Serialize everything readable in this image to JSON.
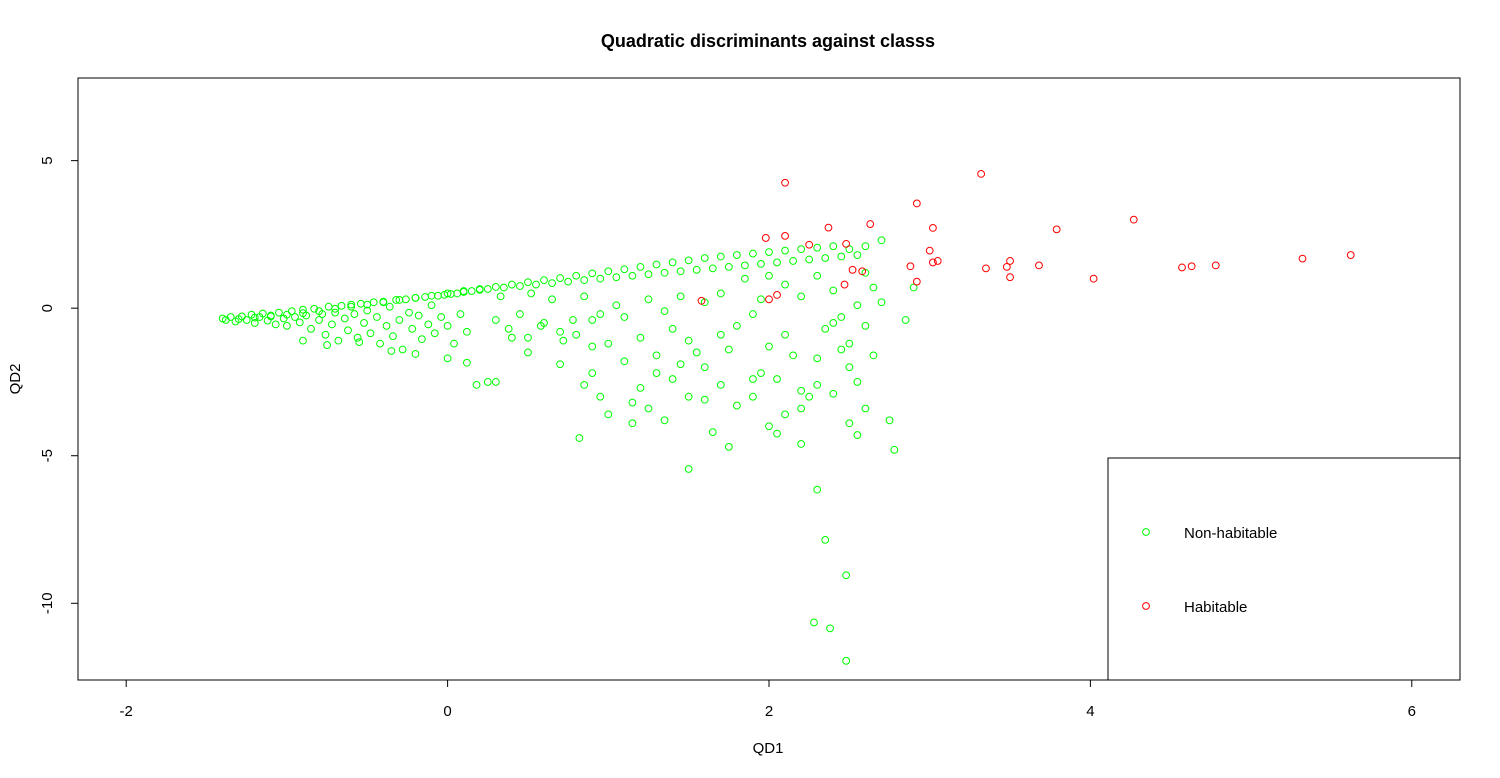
{
  "chart_data": {
    "type": "scatter",
    "title": "Quadratic discriminants against classs",
    "xlabel": "QD1",
    "ylabel": "QD2",
    "xlim": [
      -2.3,
      6.3
    ],
    "ylim": [
      -12.6,
      7.8
    ],
    "xticks": [
      -2,
      0,
      2,
      4,
      6
    ],
    "yticks": [
      -10,
      -5,
      0,
      5
    ],
    "grid": false,
    "legend_position": "bottom-right",
    "series": [
      {
        "name": "Non-habitable",
        "color": "#00ff00",
        "marker": "open-circle",
        "points": [
          [
            -1.4,
            -0.35
          ],
          [
            -1.35,
            -0.3
          ],
          [
            -1.32,
            -0.45
          ],
          [
            -1.28,
            -0.28
          ],
          [
            -1.25,
            -0.4
          ],
          [
            -1.22,
            -0.22
          ],
          [
            -1.2,
            -0.5
          ],
          [
            -1.17,
            -0.3
          ],
          [
            -1.15,
            -0.18
          ],
          [
            -1.12,
            -0.42
          ],
          [
            -1.1,
            -0.25
          ],
          [
            -1.07,
            -0.55
          ],
          [
            -1.05,
            -0.15
          ],
          [
            -1.02,
            -0.35
          ],
          [
            -1.0,
            -0.6
          ],
          [
            -0.97,
            -0.1
          ],
          [
            -0.95,
            -0.3
          ],
          [
            -0.92,
            -0.48
          ],
          [
            -0.9,
            -0.05
          ],
          [
            -0.88,
            -0.25
          ],
          [
            -0.85,
            -0.7
          ],
          [
            -0.83,
            -0.02
          ],
          [
            -0.8,
            -0.4
          ],
          [
            -0.78,
            -0.2
          ],
          [
            -0.76,
            -0.9
          ],
          [
            -0.74,
            0.05
          ],
          [
            -0.72,
            -0.55
          ],
          [
            -0.7,
            -0.15
          ],
          [
            -0.68,
            -1.1
          ],
          [
            -0.66,
            0.08
          ],
          [
            -0.64,
            -0.35
          ],
          [
            -0.62,
            -0.75
          ],
          [
            -0.6,
            0.12
          ],
          [
            -0.58,
            -0.2
          ],
          [
            -0.56,
            -1.0
          ],
          [
            -0.54,
            0.15
          ],
          [
            -0.52,
            -0.5
          ],
          [
            -0.5,
            -0.08
          ],
          [
            -0.48,
            -0.85
          ],
          [
            -0.46,
            0.2
          ],
          [
            -0.44,
            -0.3
          ],
          [
            -0.42,
            -1.2
          ],
          [
            -0.4,
            0.22
          ],
          [
            -0.38,
            -0.6
          ],
          [
            -0.36,
            0.05
          ],
          [
            -0.34,
            -0.95
          ],
          [
            -0.32,
            0.28
          ],
          [
            -0.3,
            -0.4
          ],
          [
            -0.28,
            -1.4
          ],
          [
            -0.26,
            0.3
          ],
          [
            -0.24,
            -0.15
          ],
          [
            -0.22,
            -0.7
          ],
          [
            -0.2,
            0.35
          ],
          [
            -0.18,
            -0.25
          ],
          [
            -0.16,
            -1.05
          ],
          [
            -0.14,
            0.38
          ],
          [
            -0.12,
            -0.55
          ],
          [
            -0.1,
            0.1
          ],
          [
            -0.08,
            -0.85
          ],
          [
            -0.06,
            0.42
          ],
          [
            -0.04,
            -0.3
          ],
          [
            -0.02,
            0.45
          ],
          [
            0.0,
            -0.6
          ],
          [
            0.02,
            0.48
          ],
          [
            0.04,
            -1.2
          ],
          [
            0.06,
            0.5
          ],
          [
            0.08,
            -0.2
          ],
          [
            0.1,
            0.55
          ],
          [
            0.12,
            -0.8
          ],
          [
            0.15,
            0.58
          ],
          [
            -0.9,
            -1.1
          ],
          [
            -0.75,
            -1.25
          ],
          [
            -0.55,
            -1.15
          ],
          [
            -0.35,
            -1.45
          ],
          [
            -0.2,
            -1.55
          ],
          [
            0.0,
            -1.7
          ],
          [
            0.12,
            -1.85
          ],
          [
            0.18,
            -2.6
          ],
          [
            0.25,
            -2.5
          ],
          [
            0.3,
            -2.5
          ],
          [
            0.2,
            0.62
          ],
          [
            0.25,
            0.65
          ],
          [
            0.3,
            -0.4
          ],
          [
            0.35,
            0.7
          ],
          [
            0.4,
            -1.0
          ],
          [
            0.45,
            0.75
          ],
          [
            0.5,
            -1.5
          ],
          [
            0.55,
            0.8
          ],
          [
            0.6,
            -0.5
          ],
          [
            0.65,
            0.85
          ],
          [
            0.7,
            -1.9
          ],
          [
            0.75,
            0.9
          ],
          [
            0.8,
            -0.9
          ],
          [
            0.85,
            0.95
          ],
          [
            0.9,
            -2.2
          ],
          [
            0.95,
            1.0
          ],
          [
            1.0,
            -1.2
          ],
          [
            1.05,
            1.05
          ],
          [
            1.1,
            -0.3
          ],
          [
            1.15,
            1.1
          ],
          [
            1.2,
            -2.7
          ],
          [
            1.25,
            1.15
          ],
          [
            1.3,
            -1.6
          ],
          [
            1.35,
            1.2
          ],
          [
            1.4,
            -0.7
          ],
          [
            1.45,
            1.25
          ],
          [
            1.5,
            -3.0
          ],
          [
            1.55,
            1.3
          ],
          [
            1.6,
            -2.0
          ],
          [
            1.65,
            1.35
          ],
          [
            1.7,
            -0.9
          ],
          [
            1.75,
            1.4
          ],
          [
            1.8,
            -3.3
          ],
          [
            1.85,
            1.45
          ],
          [
            1.9,
            -2.4
          ],
          [
            1.95,
            1.5
          ],
          [
            2.0,
            -1.3
          ],
          [
            2.05,
            1.55
          ],
          [
            2.1,
            -3.6
          ],
          [
            2.15,
            1.6
          ],
          [
            2.2,
            -2.8
          ],
          [
            2.25,
            1.65
          ],
          [
            2.3,
            -1.7
          ],
          [
            2.35,
            1.7
          ],
          [
            2.4,
            -0.5
          ],
          [
            2.45,
            1.75
          ],
          [
            2.5,
            -2.0
          ],
          [
            2.55,
            1.8
          ],
          [
            0.82,
            -4.4
          ],
          [
            1.5,
            -5.45
          ],
          [
            1.75,
            -4.7
          ],
          [
            2.05,
            -4.25
          ],
          [
            2.2,
            -4.6
          ],
          [
            2.55,
            -4.3
          ],
          [
            2.78,
            -4.8
          ],
          [
            2.3,
            -6.15
          ],
          [
            2.35,
            -7.85
          ],
          [
            2.48,
            -9.05
          ],
          [
            2.28,
            -10.65
          ],
          [
            2.38,
            -10.85
          ],
          [
            2.48,
            -11.95
          ],
          [
            0.5,
            -1.0
          ],
          [
            0.7,
            -0.8
          ],
          [
            0.9,
            -0.4
          ],
          [
            1.1,
            -1.8
          ],
          [
            1.3,
            -2.2
          ],
          [
            1.5,
            -1.1
          ],
          [
            1.7,
            -2.6
          ],
          [
            1.9,
            -0.2
          ],
          [
            2.1,
            -0.9
          ],
          [
            2.3,
            -2.6
          ],
          [
            2.5,
            -1.2
          ],
          [
            2.6,
            -0.6
          ],
          [
            2.7,
            0.2
          ],
          [
            2.65,
            -1.6
          ],
          [
            2.6,
            1.2
          ],
          [
            2.55,
            0.1
          ],
          [
            2.45,
            -0.3
          ],
          [
            2.4,
            0.6
          ],
          [
            2.3,
            1.1
          ],
          [
            2.2,
            0.4
          ],
          [
            2.1,
            0.8
          ],
          [
            2.0,
            1.1
          ],
          [
            1.95,
            0.3
          ],
          [
            1.85,
            1.0
          ],
          [
            1.8,
            -0.6
          ],
          [
            1.7,
            0.5
          ],
          [
            1.6,
            0.2
          ],
          [
            1.55,
            -1.5
          ],
          [
            1.45,
            0.4
          ],
          [
            1.4,
            -2.4
          ],
          [
            1.35,
            -0.1
          ],
          [
            1.25,
            0.3
          ],
          [
            1.2,
            -1.0
          ],
          [
            1.15,
            -3.2
          ],
          [
            1.05,
            0.1
          ],
          [
            1.0,
            -3.6
          ],
          [
            0.95,
            -0.2
          ],
          [
            0.9,
            -1.3
          ],
          [
            0.85,
            0.4
          ],
          [
            0.78,
            -0.4
          ],
          [
            0.72,
            -1.1
          ],
          [
            0.65,
            0.3
          ],
          [
            0.58,
            -0.6
          ],
          [
            0.52,
            0.5
          ],
          [
            0.45,
            -0.2
          ],
          [
            0.38,
            -0.7
          ],
          [
            0.33,
            0.4
          ],
          [
            2.9,
            0.7
          ],
          [
            2.85,
            -0.4
          ],
          [
            2.75,
            -3.8
          ],
          [
            2.6,
            -3.4
          ],
          [
            2.5,
            -3.9
          ],
          [
            2.4,
            -2.9
          ],
          [
            2.2,
            -3.4
          ],
          [
            2.0,
            -4.0
          ],
          [
            1.9,
            -3.0
          ],
          [
            1.65,
            -4.2
          ],
          [
            1.35,
            -3.8
          ],
          [
            1.25,
            -3.4
          ],
          [
            1.15,
            -3.9
          ],
          [
            0.95,
            -3.0
          ],
          [
            0.85,
            -2.6
          ],
          [
            1.45,
            -1.9
          ],
          [
            1.6,
            -3.1
          ],
          [
            1.75,
            -1.4
          ],
          [
            1.95,
            -2.2
          ],
          [
            2.15,
            -1.6
          ],
          [
            2.35,
            -0.7
          ],
          [
            2.45,
            -1.4
          ],
          [
            2.55,
            -2.5
          ],
          [
            2.65,
            0.7
          ],
          [
            2.7,
            2.3
          ],
          [
            2.6,
            2.1
          ],
          [
            2.5,
            2.0
          ],
          [
            2.4,
            2.1
          ],
          [
            2.3,
            2.05
          ],
          [
            2.2,
            2.0
          ],
          [
            2.1,
            1.95
          ],
          [
            2.0,
            1.9
          ],
          [
            1.9,
            1.85
          ],
          [
            1.8,
            1.8
          ],
          [
            1.7,
            1.75
          ],
          [
            1.6,
            1.7
          ],
          [
            1.5,
            1.62
          ],
          [
            1.4,
            1.55
          ],
          [
            1.3,
            1.48
          ],
          [
            1.2,
            1.4
          ],
          [
            1.1,
            1.32
          ],
          [
            1.0,
            1.25
          ],
          [
            0.9,
            1.18
          ],
          [
            0.8,
            1.1
          ],
          [
            0.7,
            1.02
          ],
          [
            0.6,
            0.95
          ],
          [
            0.5,
            0.88
          ],
          [
            0.4,
            0.8
          ],
          [
            0.3,
            0.72
          ],
          [
            0.2,
            0.65
          ],
          [
            0.1,
            0.58
          ],
          [
            0.0,
            0.5
          ],
          [
            -0.1,
            0.42
          ],
          [
            -0.2,
            0.35
          ],
          [
            -0.3,
            0.28
          ],
          [
            -0.4,
            0.2
          ],
          [
            -0.5,
            0.12
          ],
          [
            -0.6,
            0.05
          ],
          [
            -0.7,
            -0.02
          ],
          [
            -0.8,
            -0.1
          ],
          [
            -0.9,
            -0.17
          ],
          [
            -1.0,
            -0.22
          ],
          [
            -1.1,
            -0.28
          ],
          [
            -1.2,
            -0.32
          ],
          [
            -1.3,
            -0.37
          ],
          [
            -1.38,
            -0.4
          ],
          [
            2.05,
            -2.4
          ],
          [
            2.25,
            -3.0
          ]
        ]
      },
      {
        "name": "Habitable",
        "color": "#ff0000",
        "marker": "open-circle",
        "points": [
          [
            2.1,
            4.25
          ],
          [
            3.32,
            4.55
          ],
          [
            4.27,
            3.0
          ],
          [
            2.92,
            3.55
          ],
          [
            2.63,
            2.85
          ],
          [
            3.02,
            2.72
          ],
          [
            2.37,
            2.73
          ],
          [
            3.79,
            2.67
          ],
          [
            2.1,
            2.45
          ],
          [
            1.98,
            2.38
          ],
          [
            2.25,
            2.15
          ],
          [
            2.48,
            2.18
          ],
          [
            3.0,
            1.95
          ],
          [
            3.05,
            1.6
          ],
          [
            3.02,
            1.55
          ],
          [
            3.5,
            1.6
          ],
          [
            3.48,
            1.4
          ],
          [
            3.35,
            1.35
          ],
          [
            3.68,
            1.45
          ],
          [
            2.88,
            1.42
          ],
          [
            2.52,
            1.3
          ],
          [
            2.58,
            1.25
          ],
          [
            5.62,
            1.8
          ],
          [
            5.32,
            1.68
          ],
          [
            4.78,
            1.45
          ],
          [
            4.63,
            1.42
          ],
          [
            4.57,
            1.38
          ],
          [
            4.02,
            1.0
          ],
          [
            3.5,
            1.05
          ],
          [
            2.92,
            0.9
          ],
          [
            2.47,
            0.8
          ],
          [
            2.05,
            0.45
          ],
          [
            2.0,
            0.3
          ],
          [
            1.58,
            0.25
          ]
        ]
      }
    ]
  }
}
